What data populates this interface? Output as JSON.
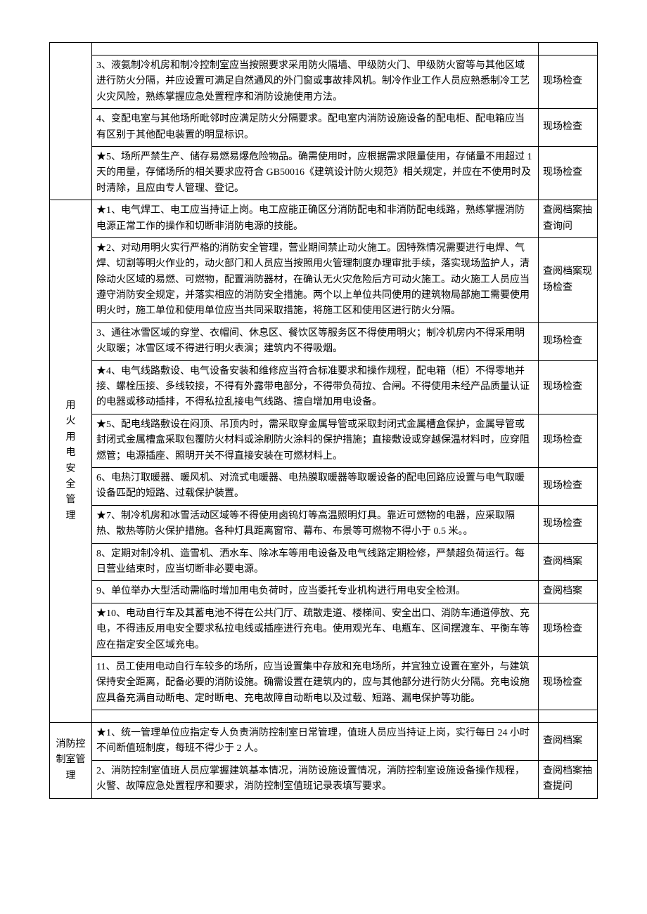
{
  "sections": {
    "top": {
      "rows": [
        {
          "desc": "3、液氨制冷机房和制冷控制室应当按照要求采用防火隔墙、甲级防火门、甲级防火窗等与其他区域进行防火分隔，并应设置可满足自然通风的外门窗或事故排风机。制冷作业工作人员应熟悉制冷工艺火灾风险，熟练掌握应急处置程序和消防设施使用方法。",
          "method": "现场检查"
        },
        {
          "desc": "4、变配电室与其他场所毗邻时应满足防火分隔要求。配电室内消防设施设备的配电柜、配电箱应当有区别于其他配电装置的明显标识。",
          "method": "现场检查"
        },
        {
          "desc": "★5、场所严禁生产、储存易燃易爆危险物品。确需使用时，应根据需求限量使用，存储量不用超过 1 天的用量，存储场所的相关要求应符合 GB50016《建筑设计防火规范》相关规定，并应在不使用时及时清除，且应由专人管理、登记。",
          "method": "现场检查"
        }
      ]
    },
    "fire_elec": {
      "category": "用火用电安全管理",
      "rows": [
        {
          "desc": "★1、电气焊工、电工应当持证上岗。电工应能正确区分消防配电和非消防配电线路，熟练掌握消防电源正常工作的操作和切断非消防电源的技能。",
          "method": "查阅档案抽查询问"
        },
        {
          "desc": "★2、对动用明火实行严格的消防安全管理，营业期间禁止动火施工。因特殊情况需要进行电焊、气焊、切割等明火作业的，动火部门和人员应当按照用火管理制度办理审批手续，落实现场监护人，清除动火区域的易燃、可燃物，配置消防器材，在确认无火灾危险后方可动火施工。动火施工人员应当遵守消防安全规定，并落实相应的消防安全措施。两个以上单位共同使用的建筑物局部施工需要使用明火时，施工单位和使用单位应当共同采取措施，将施工区和使用区进行防火分隔。",
          "method": "查阅档案现场检查"
        },
        {
          "desc": "3、通往冰雪区域的穿堂、衣帽间、休息区、餐饮区等服务区不得使用明火；制冷机房内不得采用明火取暖；冰雪区域不得进行明火表演；建筑内不得吸烟。",
          "method": "现场检查"
        },
        {
          "desc": "★4、电气线路敷设、电气设备安装和维修应当符合标准要求和操作规程，配电箱（柜）不得零地并接、螺栓压接、多线较接，不得有外露带电部分，不得带负荷拉、合闸。不得使用未经产品质量认证的电器或移动插排，不得私拉乱接电气线路、擅自增加用电设备。",
          "method": "现场检查"
        },
        {
          "desc": "★5、配电线路敷设在闷顶、吊顶内时，需采取穿金属导管或采取封闭式金属槽盒保护，金属导管或封闭式金属槽盒采取包覆防火材料或涂刷防火涂料的保护措施；直接敷设或穿越保温材料时，应穿阻燃管；电源插座、照明开关不得直接安装在可燃材料上。",
          "method": "现场检查"
        },
        {
          "desc": "6、电热汀取暖器、暖风机、对流式电暖器、电热膜取暖器等取暖设备的配电回路应设置与电气取暖设备匹配的短路、过载保护装置。",
          "method": "现场检查"
        },
        {
          "desc": "★7、制冷机房和冰雪活动区域等不得使用卤钨灯等高温照明灯具。靠近可燃物的电器，应采取隔热、散热等防火保护措施。各种灯具距离窗帘、幕布、布景等可燃物不得小于 0.5 米。。",
          "method": "现场检查"
        },
        {
          "desc": "8、定期对制冷机、造雪机、洒水车、除冰车等用电设备及电气线路定期检修，严禁超负荷运行。每日营业结束时，应当切断非必要电源。",
          "method": "查阅档案"
        },
        {
          "desc": "9、单位举办大型活动需临时增加用电负荷时，应当委托专业机构进行用电安全检测。",
          "method": "查阅档案"
        },
        {
          "desc": "★10、电动自行车及其蓄电池不得在公共门厅、疏散走道、楼梯间、安全出口、消防车通道停放、充电，不得违反用电安全要求私拉电线或插座进行充电。使用观光车、电瓶车、区间摆渡车、平衡车等应在指定安全区域充电。",
          "method": "现场检查"
        },
        {
          "desc": "11、员工使用电动自行车较多的场所，应当设置集中存放和充电场所，并宜独立设置在室外，与建筑保持安全距离，配备必要的消防设施。确需设置在建筑内的，应与其他部分进行防火分隔。充电设施应具备充满自动断电、定时断电、充电故障自动断电以及过载、短路、漏电保护等功能。",
          "method": "现场检查"
        }
      ]
    },
    "control_room": {
      "category": "消防控制室管理",
      "rows": [
        {
          "desc": "★1、统一管理单位应指定专人负责消防控制室日常管理，值班人员应当持证上岗，实行每日 24 小时不间断值班制度，每班不得少于 2 人。",
          "method": "查阅档案"
        },
        {
          "desc": "2、消防控制室值班人员应掌握建筑基本情况，消防设施设置情况，消防控制室设施设备操作规程，火警、故障应急处置程序和要求，消防控制室值班记录表填写要求。",
          "method": "查阅档案抽查提问"
        }
      ]
    }
  }
}
